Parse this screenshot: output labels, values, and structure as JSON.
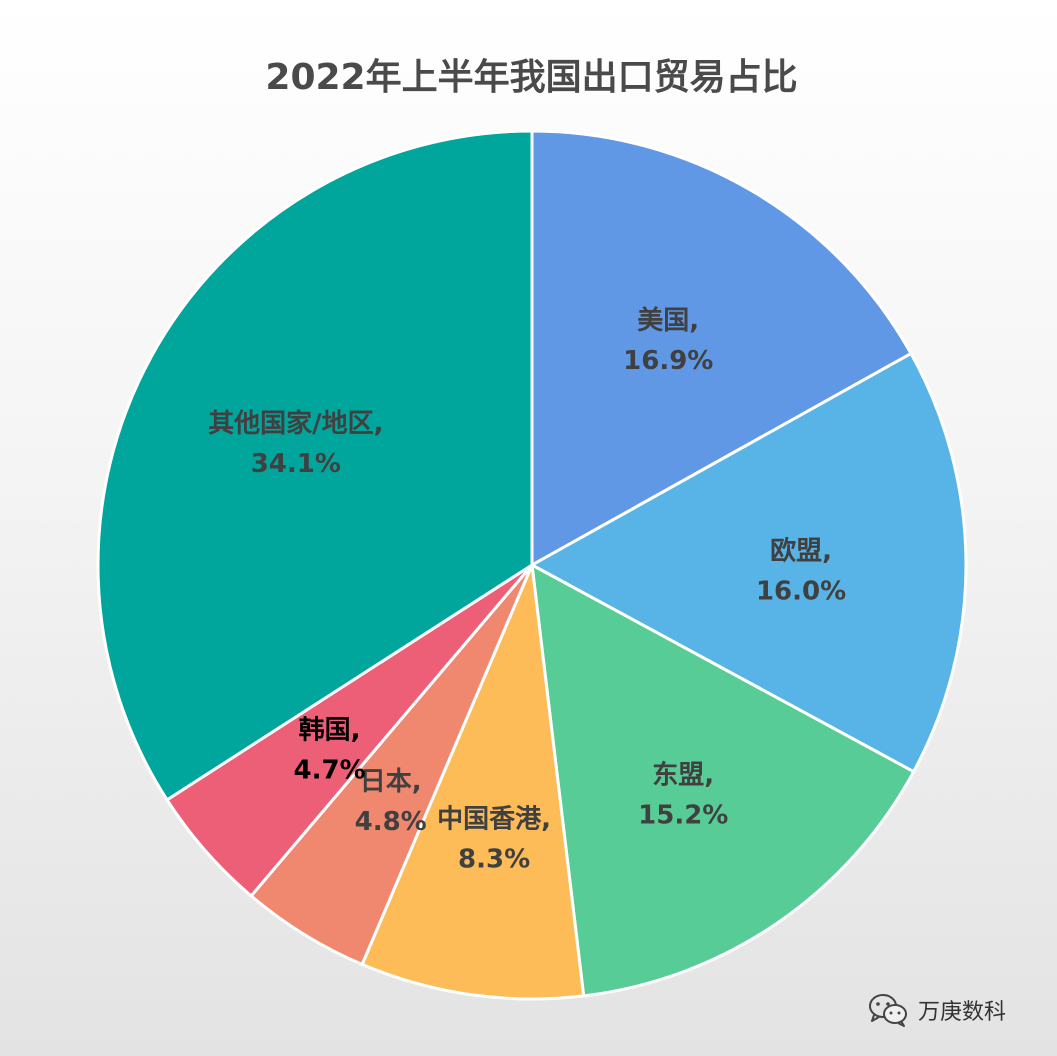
{
  "chart_data": {
    "type": "pie",
    "title": "2022年上半年我国出口贸易占比",
    "slices": [
      {
        "name": "美国",
        "value": 16.9,
        "label": "16.9%",
        "color": "#6098e6",
        "label_color": "#404040"
      },
      {
        "name": "欧盟",
        "value": 16.0,
        "label": "16.0%",
        "color": "#58b4e6",
        "label_color": "#404040"
      },
      {
        "name": "东盟",
        "value": 15.2,
        "label": "15.2%",
        "color": "#58cc96",
        "label_color": "#404040"
      },
      {
        "name": "中国香港",
        "value": 8.3,
        "label": "8.3%",
        "color": "#fdbc58",
        "label_color": "#404040"
      },
      {
        "name": "日本",
        "value": 4.8,
        "label": "4.8%",
        "color": "#f08870",
        "label_color": "#404040"
      },
      {
        "name": "韩国",
        "value": 4.7,
        "label": "4.7%",
        "color": "#ec5f76",
        "label_color": "#000000"
      },
      {
        "name": "其他国家/地区",
        "value": 34.1,
        "label": "34.1%",
        "color": "#00a59c",
        "label_color": "#404040"
      }
    ],
    "start_angle_deg": 0,
    "direction": "clockwise",
    "legend": "none"
  },
  "watermark": {
    "text": "万庚数科",
    "icon": "wechat-icon"
  }
}
